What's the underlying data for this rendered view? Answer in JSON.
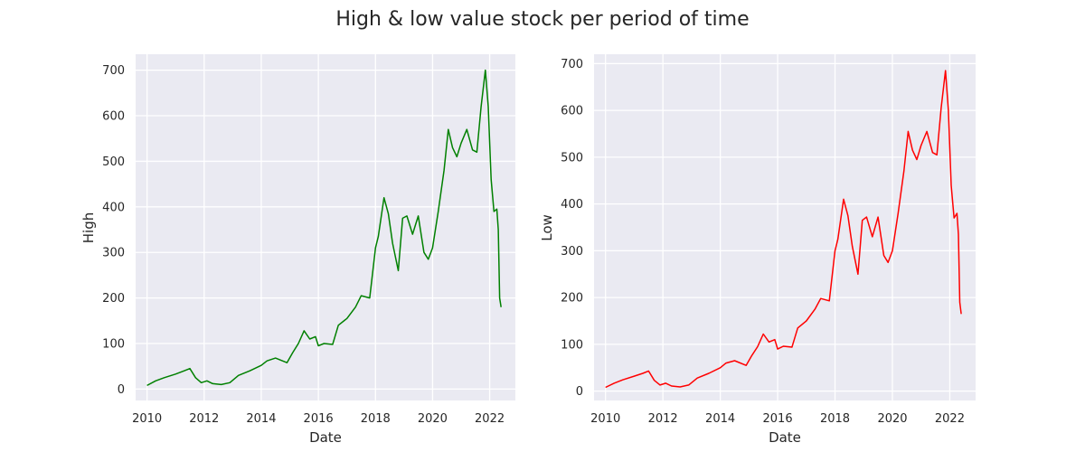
{
  "figure": {
    "title": "High & low value stock per period of time"
  },
  "chart_data": [
    {
      "type": "line",
      "xlabel": "Date",
      "ylabel": "High",
      "xlim": [
        2009.6,
        2022.9
      ],
      "ylim": [
        -25,
        735
      ],
      "x_ticks": [
        2010,
        2012,
        2014,
        2016,
        2018,
        2020,
        2022
      ],
      "x_tick_labels": [
        "2010",
        "2012",
        "2014",
        "2016",
        "2018",
        "2020",
        "2022"
      ],
      "y_ticks": [
        0,
        100,
        200,
        300,
        400,
        500,
        600,
        700
      ],
      "y_tick_labels": [
        "0",
        "100",
        "200",
        "300",
        "400",
        "500",
        "600",
        "700"
      ],
      "grid": true,
      "series": [
        {
          "color": "#008000",
          "x": [
            2010.0,
            2010.3,
            2010.6,
            2011.0,
            2011.3,
            2011.5,
            2011.7,
            2011.9,
            2012.1,
            2012.3,
            2012.6,
            2012.9,
            2013.2,
            2013.6,
            2014.0,
            2014.2,
            2014.5,
            2014.9,
            2015.1,
            2015.3,
            2015.5,
            2015.7,
            2015.9,
            2016.0,
            2016.2,
            2016.5,
            2016.7,
            2017.0,
            2017.3,
            2017.5,
            2017.8,
            2018.0,
            2018.1,
            2018.3,
            2018.45,
            2018.6,
            2018.8,
            2018.95,
            2019.1,
            2019.3,
            2019.5,
            2019.7,
            2019.85,
            2020.0,
            2020.2,
            2020.4,
            2020.55,
            2020.7,
            2020.85,
            2021.0,
            2021.2,
            2021.4,
            2021.55,
            2021.7,
            2021.85,
            2021.95,
            2022.05,
            2022.15,
            2022.25,
            2022.3,
            2022.35,
            2022.4
          ],
          "values": [
            8,
            18,
            25,
            33,
            40,
            45,
            25,
            14,
            18,
            12,
            10,
            14,
            30,
            40,
            52,
            62,
            68,
            58,
            80,
            100,
            128,
            110,
            115,
            95,
            100,
            98,
            140,
            155,
            180,
            205,
            200,
            310,
            335,
            420,
            385,
            320,
            260,
            375,
            380,
            340,
            380,
            300,
            285,
            310,
            390,
            480,
            570,
            530,
            510,
            540,
            570,
            525,
            520,
            620,
            700,
            620,
            460,
            390,
            395,
            350,
            200,
            180
          ]
        }
      ]
    },
    {
      "type": "line",
      "xlabel": "Date",
      "ylabel": "Low",
      "xlim": [
        2009.6,
        2022.9
      ],
      "ylim": [
        -20,
        720
      ],
      "x_ticks": [
        2010,
        2012,
        2014,
        2016,
        2018,
        2020,
        2022
      ],
      "x_tick_labels": [
        "2010",
        "2012",
        "2014",
        "2016",
        "2018",
        "2020",
        "2022"
      ],
      "y_ticks": [
        0,
        100,
        200,
        300,
        400,
        500,
        600,
        700
      ],
      "y_tick_labels": [
        "0",
        "100",
        "200",
        "300",
        "400",
        "500",
        "600",
        "700"
      ],
      "grid": true,
      "series": [
        {
          "color": "#ff0000",
          "x": [
            2010.0,
            2010.3,
            2010.6,
            2011.0,
            2011.3,
            2011.5,
            2011.7,
            2011.9,
            2012.1,
            2012.3,
            2012.6,
            2012.9,
            2013.2,
            2013.6,
            2014.0,
            2014.2,
            2014.5,
            2014.9,
            2015.1,
            2015.3,
            2015.5,
            2015.7,
            2015.9,
            2016.0,
            2016.2,
            2016.5,
            2016.7,
            2017.0,
            2017.3,
            2017.5,
            2017.8,
            2018.0,
            2018.1,
            2018.3,
            2018.45,
            2018.6,
            2018.8,
            2018.95,
            2019.1,
            2019.3,
            2019.5,
            2019.7,
            2019.85,
            2020.0,
            2020.2,
            2020.4,
            2020.55,
            2020.7,
            2020.85,
            2021.0,
            2021.2,
            2021.4,
            2021.55,
            2021.7,
            2021.85,
            2021.95,
            2022.05,
            2022.15,
            2022.25,
            2022.3,
            2022.35,
            2022.4
          ],
          "values": [
            8,
            17,
            24,
            32,
            38,
            43,
            23,
            13,
            17,
            11,
            9,
            13,
            28,
            38,
            50,
            60,
            65,
            55,
            76,
            95,
            122,
            105,
            110,
            90,
            96,
            94,
            135,
            150,
            175,
            198,
            193,
            300,
            325,
            410,
            375,
            310,
            250,
            365,
            372,
            330,
            372,
            290,
            275,
            300,
            380,
            470,
            555,
            515,
            495,
            525,
            555,
            510,
            505,
            605,
            685,
            600,
            440,
            370,
            380,
            335,
            190,
            165
          ]
        }
      ]
    }
  ]
}
